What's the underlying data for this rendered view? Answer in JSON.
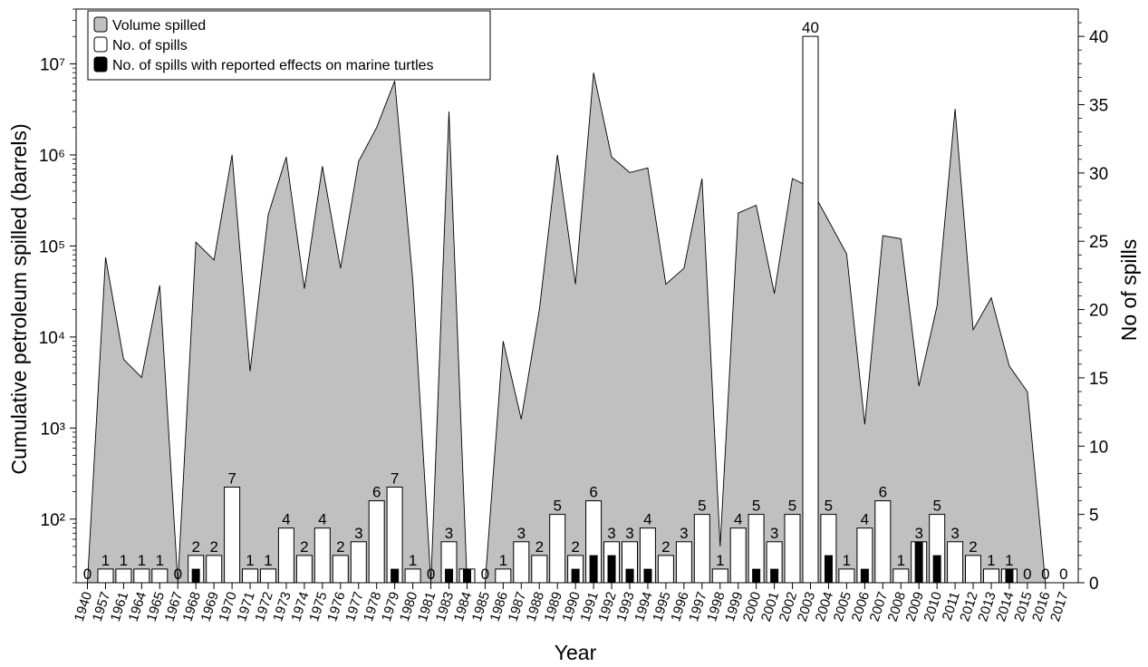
{
  "chart_data": {
    "type": "bar",
    "title": "",
    "xlabel": "Year",
    "ylabel_left": "Cumulative petroleum spilled (barrels)",
    "ylabel_right": "No of spills",
    "left_axis": {
      "scale": "log",
      "ylim": [
        20,
        40000000
      ],
      "tick_values": [
        100,
        1000,
        10000,
        100000,
        1000000,
        10000000
      ],
      "tick_labels": [
        "10²",
        "10³",
        "10⁴",
        "10⁵",
        "10⁶",
        "10⁷"
      ]
    },
    "right_axis": {
      "scale": "linear",
      "ylim": [
        0,
        42
      ],
      "tick_values": [
        0,
        5,
        10,
        15,
        20,
        25,
        30,
        35,
        40
      ],
      "tick_labels": [
        "0",
        "5",
        "10",
        "15",
        "20",
        "25",
        "30",
        "35",
        "40"
      ]
    },
    "categories": [
      "1940",
      "1957",
      "1961",
      "1964",
      "1965",
      "1967",
      "1968",
      "1969",
      "1970",
      "1971",
      "1972",
      "1973",
      "1974",
      "1975",
      "1976",
      "1977",
      "1978",
      "1979",
      "1980",
      "1981",
      "1983",
      "1984",
      "1985",
      "1986",
      "1987",
      "1988",
      "1989",
      "1990",
      "1991",
      "1992",
      "1993",
      "1994",
      "1995",
      "1996",
      "1997",
      "1998",
      "1999",
      "2000",
      "2001",
      "2002",
      "2003",
      "2004",
      "2005",
      "2006",
      "2007",
      "2008",
      "2009",
      "2010",
      "2011",
      "2012",
      "2013",
      "2014",
      "2015",
      "2016",
      "2017"
    ],
    "legend": {
      "placement": "top-left",
      "entries": [
        {
          "label": "Volume spilled",
          "color": "#c0c0c0"
        },
        {
          "label": "No. of spills",
          "color": "#ffffff"
        },
        {
          "label": "No. of spills with reported effects on marine turtles",
          "color": "#000000"
        }
      ]
    },
    "series": [
      {
        "name": "Volume spilled",
        "axis": "left",
        "type": "area",
        "color": "#c0c0c0",
        "values": [
          20,
          75000,
          5700,
          3600,
          37000,
          20,
          110000,
          70000,
          1000000,
          4200,
          220000,
          950000,
          34000,
          750000,
          57000,
          850000,
          2000000,
          6500000,
          42000,
          20,
          3000000,
          20,
          20,
          9000,
          1250,
          20000,
          1000000,
          38000,
          8000000,
          950000,
          640000,
          720000,
          38000,
          57000,
          550000,
          50,
          230000,
          280000,
          30000,
          550000,
          440000,
          190000,
          82000,
          1100,
          130000,
          120000,
          2900,
          22000,
          3200000,
          12000,
          27000,
          4800,
          2500,
          20,
          20
        ]
      },
      {
        "name": "No. of spills",
        "axis": "right",
        "type": "bar",
        "color": "#ffffff",
        "values": [
          0,
          1,
          1,
          1,
          1,
          0,
          2,
          2,
          7,
          1,
          1,
          4,
          2,
          4,
          2,
          3,
          6,
          7,
          1,
          0,
          3,
          1,
          0,
          1,
          3,
          2,
          5,
          2,
          6,
          3,
          3,
          4,
          2,
          3,
          5,
          1,
          4,
          5,
          3,
          5,
          40,
          5,
          1,
          4,
          6,
          1,
          3,
          5,
          3,
          2,
          1,
          1,
          0,
          0,
          0
        ],
        "data_labels": [
          "0",
          "1",
          "1",
          "1",
          "1",
          "0",
          "2",
          "2",
          "7",
          "1",
          "1",
          "4",
          "2",
          "4",
          "2",
          "3",
          "6",
          "7",
          "1",
          "0",
          "3",
          "",
          "0",
          "1",
          "3",
          "2",
          "5",
          "2",
          "6",
          "3",
          "3",
          "4",
          "2",
          "3",
          "5",
          "1",
          "4",
          "5",
          "3",
          "5",
          "40",
          "5",
          "1",
          "4",
          "6",
          "1",
          "3",
          "5",
          "3",
          "2",
          "1",
          "1",
          "0",
          "0",
          "0"
        ]
      },
      {
        "name": "No. of spills with reported effects on marine turtles",
        "axis": "right",
        "type": "bar",
        "color": "#000000",
        "values": [
          0,
          0,
          0,
          0,
          0,
          0,
          1,
          0,
          0,
          0,
          0,
          0,
          0,
          0,
          0,
          0,
          0,
          1,
          0,
          0,
          1,
          1,
          0,
          0,
          0,
          0,
          0,
          1,
          2,
          2,
          1,
          1,
          0,
          0,
          0,
          0,
          0,
          1,
          1,
          0,
          0,
          2,
          0,
          1,
          0,
          0,
          3,
          2,
          0,
          0,
          0,
          1,
          0,
          0,
          0
        ]
      }
    ]
  }
}
